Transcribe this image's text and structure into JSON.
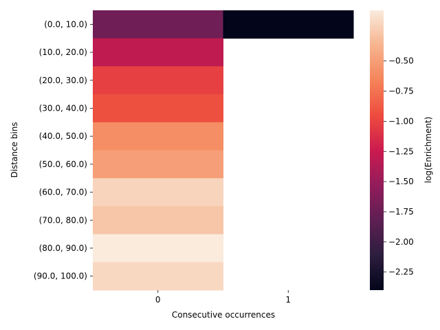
{
  "chart_data": {
    "type": "heatmap",
    "title": "",
    "xlabel": "Consecutive occurrences",
    "ylabel": "Distance bins",
    "x_categories": [
      "0",
      "1"
    ],
    "y_categories": [
      "(0.0, 10.0)",
      "(10.0, 20.0)",
      "(20.0, 30.0)",
      "(30.0, 40.0)",
      "(40.0, 50.0)",
      "(50.0, 60.0)",
      "(60.0, 70.0)",
      "(70.0, 80.0)",
      "(80.0, 90.0)",
      "(90.0, 100.0)"
    ],
    "values": [
      [
        -1.72,
        -2.4
      ],
      [
        -1.3,
        null
      ],
      [
        -1.02,
        null
      ],
      [
        -0.93,
        null
      ],
      [
        -0.6,
        null
      ],
      [
        -0.5,
        null
      ],
      [
        -0.2,
        null
      ],
      [
        -0.28,
        null
      ],
      [
        -0.08,
        null
      ],
      [
        -0.18,
        null
      ]
    ],
    "missing_cells": "blank",
    "colorbar": {
      "label": "log(Enrichment)",
      "range": [
        -2.4,
        -0.08
      ],
      "ticks": [
        "-0.50",
        "-0.75",
        "-1.00",
        "-1.25",
        "-1.50",
        "-1.75",
        "-2.00",
        "-2.25"
      ],
      "colormap": "rocket"
    }
  }
}
